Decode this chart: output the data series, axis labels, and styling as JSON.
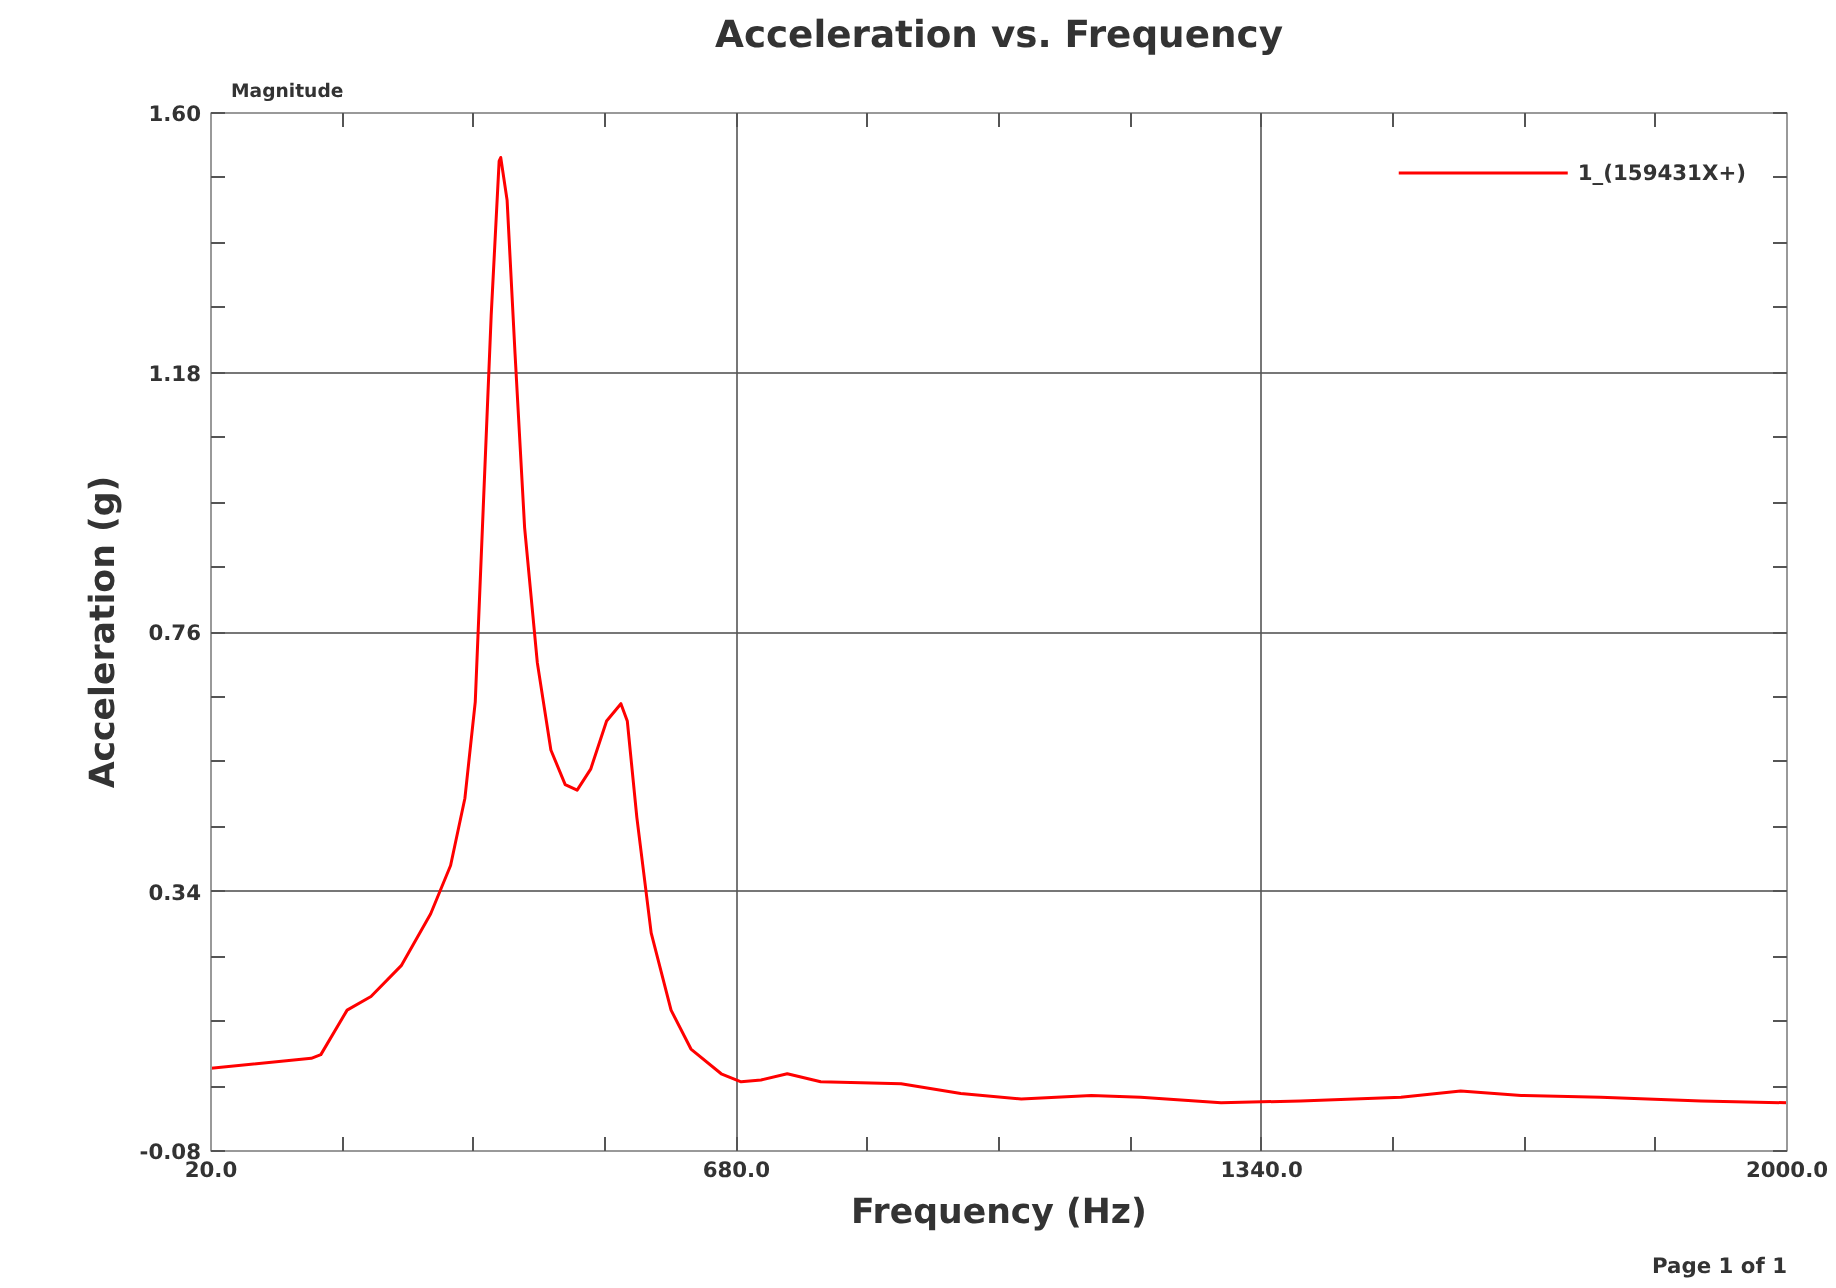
{
  "chart_data": {
    "type": "line",
    "title": "Acceleration vs. Frequency",
    "xlabel": "Frequency (Hz)",
    "ylabel": "Acceleration (g)",
    "annotations": [
      "Magnitude",
      "Page 1 of 1"
    ],
    "xlim": [
      20,
      2000
    ],
    "xticks": [
      {
        "value": 20,
        "label": "20.0"
      },
      {
        "value": 680,
        "label": "680.0"
      },
      {
        "value": 1340,
        "label": "1340.0"
      },
      {
        "value": 2000,
        "label": "2000.0"
      }
    ],
    "ylim": [
      -0.08,
      1.6
    ],
    "yticks": [
      {
        "value": -0.08,
        "label": "-0.08"
      },
      {
        "value": 0.34,
        "label": "0.34"
      },
      {
        "value": 0.76,
        "label": "0.76"
      },
      {
        "value": 1.18,
        "label": "1.18"
      },
      {
        "value": 1.6,
        "label": "1.60"
      }
    ],
    "grid": true,
    "legend": "top right",
    "marker": "none",
    "line_style": "solid",
    "series": [
      {
        "name": "1_(159431X+)",
        "color": "#ff0000",
        "x": [
          20,
          146,
          158,
          191,
          221,
          259,
          296,
          321,
          339,
          352,
          362,
          372,
          382,
          384,
          392,
          402,
          414,
          430,
          447,
          465,
          480,
          497,
          517,
          535,
          543,
          555,
          573,
          598,
          623,
          661,
          686,
          711,
          744,
          786,
          887,
          962,
          1038,
          1126,
          1188,
          1289,
          1389,
          1515,
          1590,
          1666,
          1766,
          1892,
          2000
        ],
        "values": [
          0.054,
          0.07,
          0.076,
          0.148,
          0.17,
          0.22,
          0.304,
          0.382,
          0.491,
          0.647,
          0.96,
          1.272,
          1.522,
          1.528,
          1.459,
          1.21,
          0.929,
          0.71,
          0.569,
          0.513,
          0.504,
          0.538,
          0.616,
          0.644,
          0.616,
          0.46,
          0.273,
          0.148,
          0.085,
          0.045,
          0.032,
          0.035,
          0.045,
          0.032,
          0.029,
          0.013,
          0.004,
          0.01,
          0.007,
          -0.002,
          0.001,
          0.007,
          0.017,
          0.01,
          0.007,
          0.001,
          -0.002
        ]
      }
    ]
  }
}
